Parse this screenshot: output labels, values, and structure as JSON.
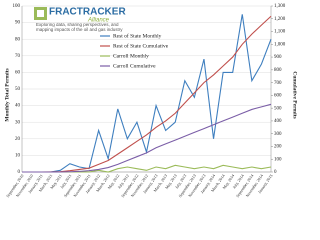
{
  "logo": {
    "name": "FRACTRACKER",
    "subname": "Alliance",
    "tagline": [
      "Exploring data, sharing perspectives, and",
      "mapping impacts of the oil and gas industry"
    ]
  },
  "chart_data": {
    "type": "line",
    "y_label": "Monthly Total Permits",
    "y2_label": "Cumulative Permits",
    "categories": [
      "September, 2010",
      "November, 2010",
      "January, 2011",
      "March, 2011",
      "May, 2011",
      "July, 2011",
      "September, 2011",
      "November, 2011",
      "January, 2012",
      "March, 2012",
      "May, 2012",
      "July, 2012",
      "September, 2012",
      "November, 2012",
      "January, 2013",
      "March, 2013",
      "May, 2013",
      "July, 2013",
      "September, 2013",
      "November, 2013",
      "January, 2014",
      "March, 2014",
      "May, 2014",
      "July, 2014",
      "September, 2014",
      "November, 2014",
      "January, 2015"
    ],
    "series": [
      {
        "name": "Rest of State Monthly",
        "color": "#3f7fbf",
        "values": [
          0,
          0,
          0,
          0,
          1,
          5,
          3,
          2,
          25,
          8,
          38,
          20,
          30,
          12,
          40,
          25,
          30,
          55,
          45,
          68,
          20,
          60,
          60,
          95,
          55,
          65,
          80
        ]
      },
      {
        "name": "Rest of State Cumulative",
        "color": "#c0504d",
        "axis": "y2",
        "values": [
          0,
          0,
          0,
          1,
          3,
          10,
          20,
          30,
          60,
          90,
          140,
          190,
          240,
          290,
          350,
          400,
          460,
          540,
          620,
          700,
          760,
          830,
          900,
          1000,
          1080,
          1150,
          1220
        ]
      },
      {
        "name": "Carroll Monthly",
        "color": "#9bbb59",
        "values": [
          0,
          0,
          0,
          0,
          0,
          0,
          0,
          0,
          1,
          0,
          2,
          3,
          2,
          1,
          3,
          2,
          4,
          3,
          2,
          3,
          2,
          4,
          3,
          2,
          3,
          2,
          3
        ]
      },
      {
        "name": "Carroll Cumulative",
        "color": "#7b5ea7",
        "axis": "y2",
        "values": [
          0,
          0,
          0,
          0,
          0,
          2,
          5,
          10,
          20,
          35,
          60,
          90,
          120,
          150,
          190,
          220,
          250,
          280,
          310,
          340,
          370,
          400,
          430,
          460,
          490,
          510,
          530
        ]
      }
    ],
    "ylim": [
      0,
      100
    ],
    "yticks": [
      0,
      10,
      20,
      30,
      40,
      50,
      60,
      70,
      80,
      90,
      100
    ],
    "y2lim": [
      0,
      1300
    ],
    "y2ticks": [
      0,
      100,
      200,
      300,
      400,
      500,
      600,
      700,
      800,
      900,
      {
        "value": 1000,
        "label": "1,000"
      },
      {
        "value": 1100,
        "label": "1,100"
      },
      {
        "value": 1200,
        "label": "1,200"
      },
      {
        "value": 1300,
        "label": "1,300"
      }
    ],
    "grid": true
  }
}
